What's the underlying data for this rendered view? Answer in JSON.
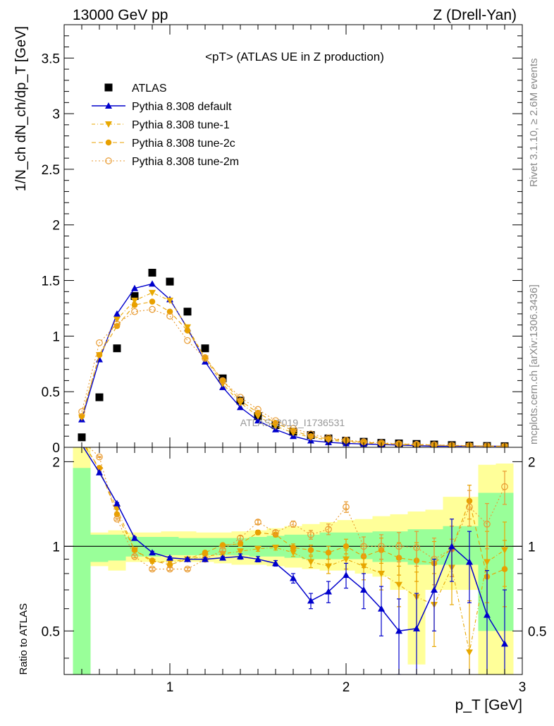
{
  "header": {
    "left": "13000 GeV pp",
    "right": "Z (Drell-Yan)"
  },
  "side_labels": {
    "rivet": "Rivet 3.1.10, ≥ 2.6M events",
    "source": "mcplots.cern.ch [arXiv:1306.3436]"
  },
  "chart_data": [
    {
      "type": "scatter",
      "panel": "main",
      "title": "<pT> (ATLAS UE in Z production)",
      "ylabel": "1/N_ch dN_ch/dp_T [GeV]",
      "xlabel": "",
      "xlim": [
        0.4,
        3.0
      ],
      "ylim": [
        0,
        3.8
      ],
      "x_ticks": [
        "1",
        "2",
        "3"
      ],
      "y_ticks": [
        "0",
        "0.5",
        "1",
        "1.5",
        "2",
        "2.5",
        "3",
        "3.5"
      ],
      "watermark": "ATLAS_2019_I1736531",
      "legend_position": "top-left",
      "x": [
        0.5,
        0.6,
        0.7,
        0.8,
        0.9,
        1.0,
        1.1,
        1.2,
        1.3,
        1.4,
        1.5,
        1.6,
        1.7,
        1.8,
        1.9,
        2.0,
        2.1,
        2.2,
        2.3,
        2.4,
        2.5,
        2.6,
        2.7,
        2.8,
        2.9
      ],
      "series": [
        {
          "name": "ATLAS",
          "color": "#000000",
          "marker": "square",
          "values": [
            0.09,
            0.45,
            0.89,
            1.36,
            1.57,
            1.49,
            1.22,
            0.89,
            0.62,
            0.42,
            0.28,
            0.2,
            0.14,
            0.11,
            0.08,
            0.06,
            0.05,
            0.04,
            0.035,
            0.03,
            0.025,
            0.02,
            0.015,
            0.012,
            0.01
          ]
        },
        {
          "name": "Pythia 8.308 default",
          "color": "#0000cc",
          "marker": "triangle-up",
          "dash": "",
          "values": [
            0.25,
            0.79,
            1.2,
            1.43,
            1.47,
            1.33,
            1.07,
            0.77,
            0.54,
            0.36,
            0.24,
            0.16,
            0.1,
            0.06,
            0.045,
            0.035,
            0.03,
            0.025,
            0.02,
            0.015,
            0.01,
            0.01,
            0.01,
            0.01,
            0.01
          ]
        },
        {
          "name": "Pythia 8.308 tune-1",
          "color": "#e8a800",
          "marker": "triangle-down",
          "dash": "5,3,1,3",
          "values": [
            0.27,
            0.83,
            1.15,
            1.32,
            1.39,
            1.32,
            1.08,
            0.8,
            0.57,
            0.4,
            0.28,
            0.19,
            0.13,
            0.09,
            0.065,
            0.05,
            0.04,
            0.03,
            0.025,
            0.02,
            0.018,
            0.015,
            0.012,
            0.01,
            0.008
          ]
        },
        {
          "name": "Pythia 8.308 tune-2c",
          "color": "#e8a000",
          "marker": "circle",
          "dash": "6,4",
          "values": [
            0.28,
            0.83,
            1.09,
            1.28,
            1.31,
            1.22,
            1.05,
            0.81,
            0.6,
            0.42,
            0.31,
            0.22,
            0.15,
            0.1,
            0.075,
            0.06,
            0.045,
            0.035,
            0.03,
            0.025,
            0.02,
            0.016,
            0.013,
            0.011,
            0.009
          ]
        },
        {
          "name": "Pythia 8.308 tune-2m",
          "color": "#e89a30",
          "marker": "circle-open",
          "dash": "2,3",
          "values": [
            0.32,
            0.94,
            1.11,
            1.22,
            1.24,
            1.18,
            0.96,
            0.8,
            0.6,
            0.45,
            0.34,
            0.24,
            0.17,
            0.12,
            0.085,
            0.065,
            0.05,
            0.04,
            0.032,
            0.027,
            0.022,
            0.018,
            0.015,
            0.012,
            0.01
          ]
        }
      ]
    },
    {
      "type": "line",
      "panel": "ratio",
      "ylabel": "Ratio to ATLAS",
      "xlabel": "p_T [GeV]",
      "xlim": [
        0.4,
        3.0
      ],
      "ylim": [
        0.35,
        2.25
      ],
      "x_ticks": [
        "1",
        "2",
        "3"
      ],
      "y_ticks": [
        "0.5",
        "1",
        "2"
      ],
      "reference_line": 1,
      "x": [
        0.5,
        0.6,
        0.7,
        0.8,
        0.9,
        1.0,
        1.1,
        1.2,
        1.3,
        1.4,
        1.5,
        1.6,
        1.7,
        1.8,
        1.9,
        2.0,
        2.1,
        2.2,
        2.3,
        2.4,
        2.5,
        2.6,
        2.7,
        2.8,
        2.9
      ],
      "band_inner": [
        [
          0.35,
          1.9
        ],
        [
          0.88,
          1.1
        ],
        [
          0.89,
          1.1
        ],
        [
          0.92,
          1.08
        ],
        [
          0.92,
          1.08
        ],
        [
          0.93,
          1.08
        ],
        [
          0.93,
          1.07
        ],
        [
          0.93,
          1.07
        ],
        [
          0.93,
          1.07
        ],
        [
          0.93,
          1.07
        ],
        [
          0.92,
          1.08
        ],
        [
          0.92,
          1.09
        ],
        [
          0.91,
          1.1
        ],
        [
          0.9,
          1.1
        ],
        [
          0.9,
          1.12
        ],
        [
          0.9,
          1.12
        ],
        [
          0.9,
          1.12
        ],
        [
          0.88,
          1.13
        ],
        [
          0.88,
          1.13
        ],
        [
          0.86,
          1.15
        ],
        [
          0.86,
          1.15
        ],
        [
          0.86,
          1.18
        ],
        [
          0.86,
          1.18
        ],
        [
          0.5,
          1.55
        ],
        [
          0.5,
          1.55
        ]
      ],
      "band_outer": [
        [
          0.35,
          2.25
        ],
        [
          0.85,
          1.12
        ],
        [
          0.82,
          1.14
        ],
        [
          0.88,
          1.12
        ],
        [
          0.88,
          1.12
        ],
        [
          0.88,
          1.13
        ],
        [
          0.88,
          1.13
        ],
        [
          0.88,
          1.12
        ],
        [
          0.87,
          1.12
        ],
        [
          0.86,
          1.13
        ],
        [
          0.86,
          1.14
        ],
        [
          0.85,
          1.16
        ],
        [
          0.84,
          1.18
        ],
        [
          0.83,
          1.2
        ],
        [
          0.82,
          1.22
        ],
        [
          0.82,
          1.24
        ],
        [
          0.8,
          1.25
        ],
        [
          0.78,
          1.28
        ],
        [
          0.7,
          1.3
        ],
        [
          0.38,
          1.33
        ],
        [
          0.7,
          1.35
        ],
        [
          0.7,
          1.5
        ],
        [
          0.7,
          1.5
        ],
        [
          0.35,
          1.95
        ],
        [
          0.35,
          1.97
        ]
      ],
      "series": [
        {
          "name": "Pythia 8.308 default",
          "color": "#0000cc",
          "marker": "triangle-up",
          "dash": "",
          "values": [
            2.3,
            1.83,
            1.42,
            1.07,
            0.95,
            0.91,
            0.9,
            0.9,
            0.91,
            0.92,
            0.9,
            0.87,
            0.77,
            0.64,
            0.69,
            0.79,
            0.7,
            0.6,
            0.5,
            0.51,
            0.7,
            1.0,
            0.88,
            0.57,
            0.45
          ],
          "err": [
            0,
            0.01,
            0.01,
            0.01,
            0.01,
            0.01,
            0.01,
            0.01,
            0.01,
            0.02,
            0.02,
            0.02,
            0.03,
            0.04,
            0.06,
            0.08,
            0.1,
            0.12,
            0.15,
            0.17,
            0.2,
            0.25,
            0.25,
            0.25,
            0.25
          ]
        },
        {
          "name": "Pythia 8.308 tune-1",
          "color": "#e8a800",
          "marker": "triangle-down",
          "dash": "5,3,1,3",
          "values": [
            2.4,
            1.87,
            1.36,
            0.97,
            0.88,
            0.88,
            0.9,
            0.92,
            0.94,
            0.96,
            0.98,
            0.99,
            0.95,
            0.88,
            0.85,
            0.9,
            0.85,
            0.8,
            0.73,
            0.66,
            0.62,
            0.84,
            0.42,
            0.88,
            0.97
          ],
          "err": [
            0,
            0.01,
            0.01,
            0.01,
            0.01,
            0.01,
            0.01,
            0.01,
            0.01,
            0.02,
            0.02,
            0.02,
            0.03,
            0.04,
            0.05,
            0.07,
            0.09,
            0.1,
            0.12,
            0.15,
            0.18,
            0.22,
            0.22,
            0.25,
            0.25
          ]
        },
        {
          "name": "Pythia 8.308 tune-2c",
          "color": "#e8a000",
          "marker": "circle",
          "dash": "6,4",
          "values": [
            2.35,
            1.9,
            1.3,
            0.97,
            0.89,
            0.86,
            0.9,
            0.95,
            1.01,
            1.02,
            1.12,
            1.1,
            0.99,
            0.97,
            0.95,
            1.0,
            0.92,
            0.97,
            0.91,
            0.89,
            0.87,
            0.98,
            1.45,
            0.78,
            0.83
          ],
          "err": [
            0,
            0.01,
            0.01,
            0.01,
            0.01,
            0.01,
            0.01,
            0.01,
            0.01,
            0.02,
            0.02,
            0.02,
            0.03,
            0.04,
            0.05,
            0.06,
            0.08,
            0.1,
            0.12,
            0.14,
            0.17,
            0.2,
            0.2,
            0.22,
            0.22
          ]
        },
        {
          "name": "Pythia 8.308 tune-2m",
          "color": "#e89a30",
          "marker": "circle-open",
          "dash": "2,3",
          "values": [
            2.38,
            2.08,
            1.25,
            0.92,
            0.83,
            0.83,
            0.83,
            0.9,
            0.97,
            1.07,
            1.22,
            1.12,
            1.2,
            1.1,
            1.15,
            1.38,
            1.0,
            1.0,
            1.0,
            0.99,
            0.9,
            0.98,
            1.38,
            1.2,
            1.63
          ],
          "err": [
            0,
            0.01,
            0.01,
            0.01,
            0.01,
            0.01,
            0.01,
            0.01,
            0.01,
            0.02,
            0.02,
            0.02,
            0.03,
            0.04,
            0.05,
            0.06,
            0.08,
            0.1,
            0.12,
            0.14,
            0.17,
            0.2,
            0.2,
            0.22,
            0.22
          ]
        }
      ]
    }
  ]
}
